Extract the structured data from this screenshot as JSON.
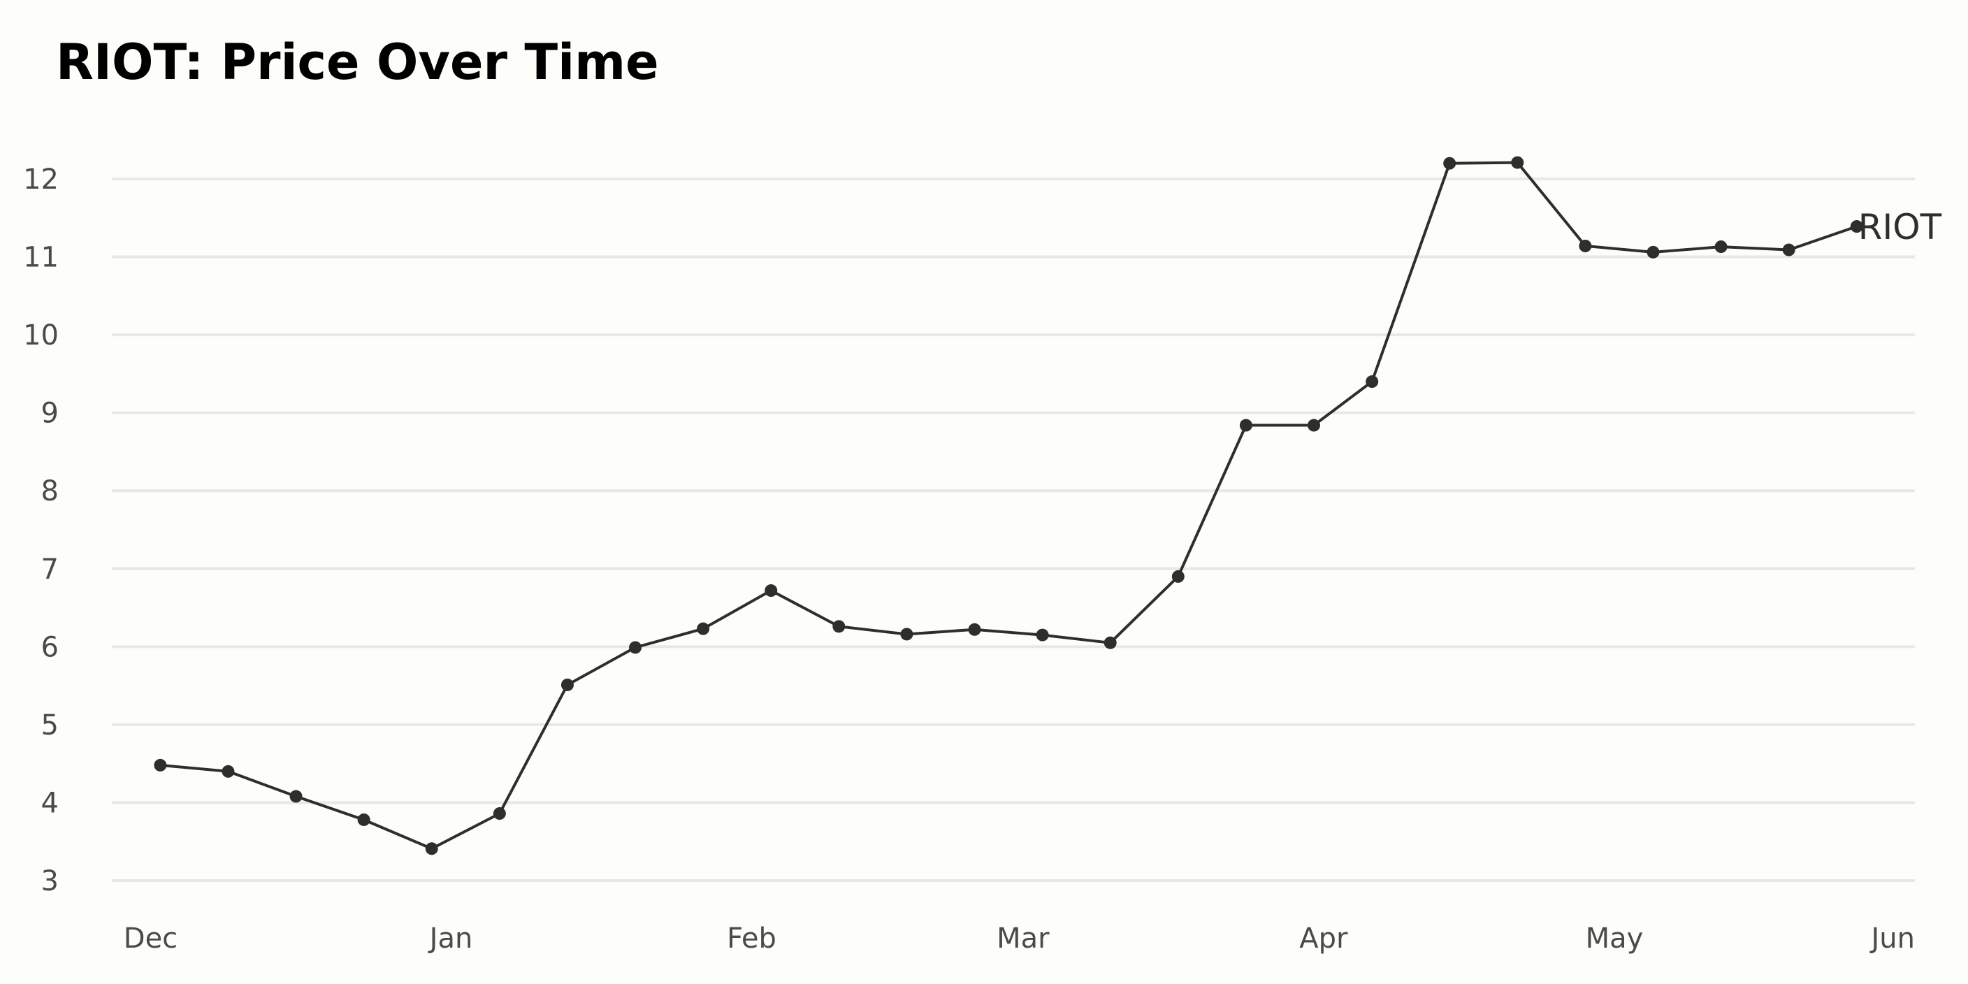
{
  "chart_data": {
    "type": "line",
    "title": "RIOT: Price Over Time",
    "xlabel": "",
    "ylabel": "",
    "ylim": [
      3,
      12
    ],
    "yticks": [
      3,
      4,
      5,
      6,
      7,
      8,
      9,
      10,
      11,
      12
    ],
    "xlim": [
      "2021-11-27",
      "2022-06-01"
    ],
    "xticks": [
      {
        "label": "Dec",
        "date": "2021-12-01"
      },
      {
        "label": "Jan",
        "date": "2022-01-01"
      },
      {
        "label": "Feb",
        "date": "2022-02-01"
      },
      {
        "label": "Mar",
        "date": "2022-03-01"
      },
      {
        "label": "Apr",
        "date": "2022-04-01"
      },
      {
        "label": "May",
        "date": "2022-05-01"
      },
      {
        "label": "Jun",
        "date": "2022-06-01"
      }
    ],
    "grid": "horizontal",
    "series": [
      {
        "name": "RIOT",
        "color": "#2e2e2e",
        "x": [
          "2021-12-02",
          "2021-12-09",
          "2021-12-16",
          "2021-12-23",
          "2021-12-30",
          "2022-01-06",
          "2022-01-13",
          "2022-01-20",
          "2022-01-27",
          "2022-02-03",
          "2022-02-10",
          "2022-02-17",
          "2022-02-24",
          "2022-03-03",
          "2022-03-10",
          "2022-03-17",
          "2022-03-24",
          "2022-03-31",
          "2022-04-06",
          "2022-04-14",
          "2022-04-21",
          "2022-04-28",
          "2022-05-05",
          "2022-05-12",
          "2022-05-19",
          "2022-05-26"
        ],
        "values": [
          4.48,
          4.4,
          4.08,
          3.78,
          3.41,
          3.86,
          5.51,
          5.99,
          6.23,
          6.72,
          6.26,
          6.16,
          6.22,
          6.15,
          6.05,
          6.9,
          8.84,
          8.84,
          9.4,
          12.2,
          12.21,
          11.14,
          11.06,
          11.13,
          11.09,
          11.39
        ]
      }
    ]
  }
}
